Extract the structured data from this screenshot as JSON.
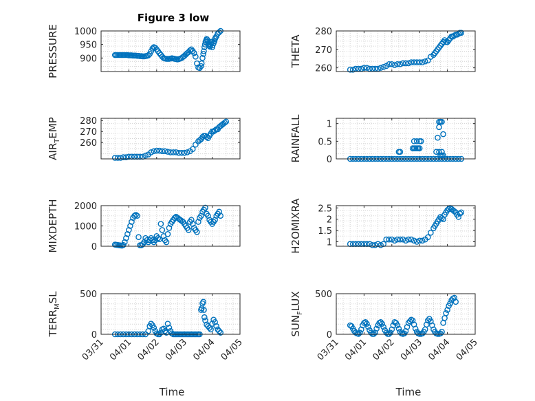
{
  "figure": {
    "title": "Figure 3 low",
    "marker_color": "#0072BD",
    "x_ticks": [
      "03/31",
      "04/01",
      "04/02",
      "04/03",
      "04/04",
      "04/05"
    ],
    "x_label": "Time"
  },
  "chart_data": [
    {
      "type": "scatter",
      "ylabel": "PRESSURE",
      "title": "Figure 3 low",
      "xlim": [
        0,
        5
      ],
      "ylim": [
        850,
        1000
      ],
      "yticks": [
        900,
        950,
        1000
      ],
      "grid": true,
      "x": [
        0.5,
        0.55,
        0.6,
        0.65,
        0.7,
        0.75,
        0.8,
        0.85,
        0.9,
        0.95,
        1,
        1.05,
        1.1,
        1.15,
        1.2,
        1.25,
        1.3,
        1.35,
        1.4,
        1.45,
        1.5,
        1.55,
        1.6,
        1.65,
        1.7,
        1.75,
        1.8,
        1.85,
        1.9,
        1.95,
        2,
        2.05,
        2.1,
        2.15,
        2.2,
        2.25,
        2.3,
        2.35,
        2.4,
        2.45,
        2.5,
        2.55,
        2.6,
        2.65,
        2.7,
        2.75,
        2.8,
        2.85,
        2.9,
        2.95,
        3,
        3.05,
        3.1,
        3.15,
        3.2,
        3.25,
        3.3,
        3.35,
        3.4,
        3.45,
        3.5,
        3.55,
        3.6,
        3.62,
        3.65,
        3.68,
        3.7,
        3.72,
        3.74,
        3.76,
        3.78,
        3.8,
        3.82,
        3.85,
        3.88,
        3.9,
        3.92,
        3.94,
        3.96,
        3.98,
        4,
        4.02,
        4.05,
        4.08,
        4.1,
        4.12,
        4.15,
        4.2,
        4.25,
        4.3
      ],
      "y": [
        911,
        911,
        911,
        911,
        911,
        911,
        911,
        911,
        911,
        911,
        910,
        910,
        910,
        909,
        909,
        909,
        908,
        908,
        907,
        907,
        906,
        906,
        907,
        908,
        910,
        915,
        925,
        935,
        940,
        938,
        932,
        925,
        918,
        912,
        905,
        900,
        898,
        897,
        897,
        897,
        898,
        899,
        898,
        897,
        896,
        895,
        896,
        898,
        900,
        904,
        908,
        913,
        918,
        922,
        928,
        932,
        926,
        918,
        905,
        880,
        865,
        863,
        870,
        880,
        900,
        915,
        925,
        940,
        950,
        960,
        965,
        970,
        968,
        960,
        950,
        945,
        942,
        950,
        955,
        960,
        940,
        948,
        955,
        962,
        970,
        975,
        980,
        990,
        995,
        1000
      ]
    },
    {
      "type": "scatter",
      "ylabel": "THETA",
      "xlim": [
        0,
        5
      ],
      "ylim": [
        258,
        280
      ],
      "yticks": [
        260,
        270,
        280
      ],
      "grid": true,
      "x": [
        0.5,
        0.6,
        0.7,
        0.8,
        0.9,
        1,
        1.1,
        1.2,
        1.3,
        1.4,
        1.5,
        1.6,
        1.7,
        1.8,
        1.9,
        2,
        2.1,
        2.2,
        2.3,
        2.4,
        2.5,
        2.6,
        2.7,
        2.8,
        2.9,
        3,
        3.1,
        3.2,
        3.3,
        3.4,
        3.5,
        3.55,
        3.6,
        3.65,
        3.7,
        3.75,
        3.8,
        3.85,
        3.9,
        3.95,
        4,
        4.05,
        4.1,
        4.15,
        4.2,
        4.25,
        4.3,
        4.35,
        4.4,
        4.45,
        4.5
      ],
      "y": [
        259,
        259,
        259.5,
        259.5,
        259.5,
        260,
        260,
        259.5,
        259.5,
        259.5,
        259.5,
        260,
        260.5,
        261,
        262,
        262,
        261.5,
        262,
        262,
        262.5,
        262.5,
        262.5,
        263,
        263,
        263,
        263,
        263,
        263.5,
        264,
        266,
        267,
        268,
        269,
        270,
        271,
        272,
        273,
        274,
        275,
        274,
        274,
        275,
        276,
        277,
        277,
        277.5,
        278,
        278,
        278.5,
        279,
        279
      ]
    },
    {
      "type": "scatter",
      "ylabel": "AIR_TEMP",
      "xlim": [
        0,
        5
      ],
      "ylim": [
        245,
        282
      ],
      "yticks": [
        260,
        270,
        280
      ],
      "grid": true,
      "x": [
        0.5,
        0.6,
        0.7,
        0.8,
        0.9,
        1,
        1.1,
        1.2,
        1.3,
        1.4,
        1.5,
        1.6,
        1.7,
        1.8,
        1.9,
        2,
        2.1,
        2.2,
        2.3,
        2.4,
        2.5,
        2.6,
        2.7,
        2.8,
        2.9,
        3,
        3.1,
        3.2,
        3.3,
        3.4,
        3.5,
        3.55,
        3.6,
        3.65,
        3.7,
        3.75,
        3.8,
        3.85,
        3.9,
        3.95,
        4,
        4.05,
        4.1,
        4.15,
        4.2,
        4.25,
        4.3,
        4.35,
        4.4,
        4.45,
        4.5
      ],
      "y": [
        246,
        246,
        246,
        246.5,
        246.5,
        247,
        247,
        247,
        247,
        247,
        247,
        248,
        249,
        251,
        252,
        252.5,
        252.5,
        252,
        252,
        251.5,
        251,
        251,
        251,
        250.5,
        250.5,
        250.5,
        251,
        252,
        254,
        258,
        261,
        262,
        263,
        265,
        266,
        266,
        265,
        264,
        266,
        268,
        270,
        270,
        271,
        272,
        272,
        274,
        275,
        276,
        277,
        278,
        279
      ]
    },
    {
      "type": "scatter",
      "ylabel": "RAINFALL",
      "xlim": [
        0,
        5
      ],
      "ylim": [
        0,
        1.15
      ],
      "yticks": [
        0,
        0.5,
        1
      ],
      "grid": true,
      "x": [
        0.5,
        0.6,
        0.7,
        0.8,
        0.9,
        1,
        1.1,
        1.2,
        1.3,
        1.4,
        1.5,
        1.6,
        1.7,
        1.8,
        1.9,
        2,
        2.1,
        2.2,
        2.3,
        2.4,
        2.5,
        2.6,
        2.7,
        2.8,
        2.9,
        3,
        3.1,
        3.2,
        3.3,
        3.4,
        3.5,
        3.6,
        3.7,
        3.8,
        3.9,
        4,
        4.1,
        4.2,
        4.3,
        4.4,
        4.5,
        2.25,
        2.3,
        2.75,
        2.8,
        2.85,
        2.9,
        2.95,
        3,
        2.8,
        2.9,
        3,
        3.05,
        3.6,
        3.7,
        3.75,
        3.8,
        3.85,
        3.7,
        3.75,
        3.8,
        3.85,
        3.8,
        3.65,
        3.7
      ],
      "y": [
        0,
        0,
        0,
        0,
        0,
        0,
        0,
        0,
        0,
        0,
        0,
        0,
        0,
        0,
        0,
        0,
        0,
        0,
        0,
        0,
        0,
        0,
        0,
        0,
        0,
        0,
        0,
        0,
        0,
        0,
        0,
        0,
        0,
        0,
        0,
        0,
        0,
        0,
        0,
        0,
        0,
        0.2,
        0.2,
        0.3,
        0.3,
        0.3,
        0.3,
        0.3,
        0.3,
        0.5,
        0.5,
        0.5,
        0.5,
        0.2,
        0.2,
        0.1,
        0.1,
        0.1,
        1.05,
        1.05,
        1.05,
        0.7,
        0.2,
        0.6,
        0.9
      ]
    },
    {
      "type": "scatter",
      "ylabel": "MIXDEPTH",
      "xlim": [
        0,
        5
      ],
      "ylim": [
        0,
        2000
      ],
      "yticks": [
        0,
        1000,
        2000
      ],
      "grid": true,
      "x": [
        0.5,
        0.55,
        0.6,
        0.65,
        0.7,
        0.75,
        0.8,
        0.85,
        0.9,
        0.95,
        1,
        1.05,
        1.1,
        1.15,
        1.2,
        1.25,
        1.3,
        1.35,
        1.4,
        1.45,
        1.5,
        1.55,
        1.6,
        1.65,
        1.7,
        1.75,
        1.8,
        1.85,
        1.9,
        1.95,
        2,
        2.05,
        2.1,
        2.15,
        2.2,
        2.25,
        2.3,
        2.35,
        2.4,
        2.45,
        2.5,
        2.55,
        2.6,
        2.65,
        2.7,
        2.75,
        2.8,
        2.85,
        2.9,
        2.95,
        3,
        3.05,
        3.1,
        3.15,
        3.2,
        3.25,
        3.3,
        3.35,
        3.4,
        3.45,
        3.5,
        3.55,
        3.6,
        3.65,
        3.7,
        3.75,
        3.8,
        3.85,
        3.9,
        3.95,
        4,
        4.05,
        4.1,
        4.15,
        4.2,
        4.25,
        4.3
      ],
      "y": [
        80,
        70,
        60,
        50,
        40,
        30,
        60,
        200,
        400,
        600,
        800,
        1000,
        1200,
        1400,
        1500,
        1550,
        1500,
        450,
        50,
        50,
        100,
        200,
        400,
        300,
        200,
        300,
        400,
        300,
        200,
        300,
        500,
        400,
        350,
        1100,
        800,
        500,
        300,
        200,
        600,
        900,
        1100,
        1200,
        1300,
        1400,
        1450,
        1400,
        1350,
        1300,
        1250,
        1200,
        1100,
        1000,
        900,
        800,
        1200,
        1300,
        1100,
        900,
        800,
        700,
        1200,
        1400,
        1500,
        1700,
        1800,
        1900,
        1600,
        1500,
        1300,
        1200,
        1100,
        1200,
        1300,
        1500,
        1600,
        1700,
        1500
      ]
    },
    {
      "type": "scatter",
      "ylabel": "H2OMIXRA",
      "xlim": [
        0,
        5
      ],
      "ylim": [
        0.8,
        2.6
      ],
      "yticks": [
        1,
        1.5,
        2,
        2.5
      ],
      "grid": true,
      "x": [
        0.5,
        0.6,
        0.7,
        0.8,
        0.9,
        1,
        1.1,
        1.2,
        1.3,
        1.4,
        1.5,
        1.6,
        1.7,
        1.8,
        1.9,
        2,
        2.1,
        2.2,
        2.3,
        2.4,
        2.5,
        2.6,
        2.7,
        2.8,
        2.9,
        3,
        3.1,
        3.2,
        3.3,
        3.4,
        3.5,
        3.55,
        3.6,
        3.65,
        3.7,
        3.75,
        3.8,
        3.85,
        3.9,
        3.95,
        4,
        4.05,
        4.1,
        4.15,
        4.2,
        4.25,
        4.3,
        4.35,
        4.4,
        4.45,
        4.5
      ],
      "y": [
        0.9,
        0.9,
        0.9,
        0.9,
        0.9,
        0.9,
        0.9,
        0.9,
        0.85,
        0.85,
        0.9,
        0.85,
        0.9,
        1.1,
        1.1,
        1.1,
        1.05,
        1.1,
        1.1,
        1.1,
        1.05,
        1.1,
        1.1,
        1.05,
        1.0,
        1.05,
        1.05,
        1.1,
        1.2,
        1.4,
        1.6,
        1.7,
        1.8,
        1.9,
        2.0,
        2.1,
        2.05,
        2.0,
        2.2,
        2.3,
        2.4,
        2.45,
        2.5,
        2.45,
        2.4,
        2.35,
        2.3,
        2.2,
        2.1,
        2.25,
        2.3
      ]
    },
    {
      "type": "scatter",
      "ylabel": "TERR_MSL",
      "xlim": [
        0,
        5
      ],
      "ylim": [
        0,
        500
      ],
      "yticks": [
        0,
        500
      ],
      "grid": true,
      "x": [
        0.5,
        0.6,
        0.7,
        0.8,
        0.9,
        1,
        1.1,
        1.2,
        1.3,
        1.4,
        1.5,
        1.6,
        1.7,
        1.75,
        1.8,
        1.85,
        1.9,
        1.95,
        2,
        2.05,
        2.1,
        2.15,
        2.2,
        2.25,
        2.3,
        2.35,
        2.4,
        2.45,
        2.5,
        2.55,
        2.6,
        2.65,
        2.7,
        2.75,
        2.8,
        2.85,
        2.9,
        2.95,
        3,
        3.05,
        3.1,
        3.15,
        3.2,
        3.25,
        3.3,
        3.35,
        3.4,
        3.45,
        3.5,
        3.55,
        3.6,
        3.62,
        3.65,
        3.68,
        3.7,
        3.72,
        3.75,
        3.8,
        3.85,
        3.9,
        3.95,
        4,
        4.05,
        4.1,
        4.15,
        4.2,
        4.25,
        4.3
      ],
      "y": [
        0,
        0,
        0,
        0,
        0,
        0,
        0,
        0,
        0,
        0,
        0,
        0,
        40,
        100,
        130,
        110,
        80,
        40,
        10,
        0,
        0,
        20,
        60,
        70,
        40,
        20,
        130,
        80,
        40,
        10,
        0,
        0,
        0,
        0,
        0,
        0,
        0,
        0,
        0,
        0,
        0,
        0,
        0,
        0,
        0,
        0,
        0,
        0,
        0,
        0,
        300,
        320,
        380,
        400,
        300,
        210,
        170,
        120,
        100,
        80,
        60,
        130,
        180,
        150,
        100,
        60,
        40,
        20
      ]
    },
    {
      "type": "scatter",
      "ylabel": "SUN_FLUX",
      "xlim": [
        0,
        5
      ],
      "ylim": [
        0,
        500
      ],
      "yticks": [
        0,
        500
      ],
      "grid": true,
      "x": [
        0.5,
        0.55,
        0.6,
        0.65,
        0.7,
        0.75,
        0.8,
        0.85,
        0.9,
        0.95,
        1,
        1.05,
        1.1,
        1.15,
        1.2,
        1.25,
        1.3,
        1.35,
        1.4,
        1.45,
        1.5,
        1.55,
        1.6,
        1.65,
        1.7,
        1.75,
        1.8,
        1.85,
        1.9,
        1.95,
        2,
        2.05,
        2.1,
        2.15,
        2.2,
        2.25,
        2.3,
        2.35,
        2.4,
        2.45,
        2.5,
        2.55,
        2.6,
        2.65,
        2.7,
        2.75,
        2.8,
        2.85,
        2.9,
        2.95,
        3,
        3.05,
        3.1,
        3.15,
        3.2,
        3.25,
        3.3,
        3.35,
        3.4,
        3.45,
        3.5,
        3.55,
        3.6,
        3.65,
        3.7,
        3.75,
        3.8,
        3.85,
        3.9,
        3.95,
        4,
        4.05,
        4.1,
        4.15,
        4.2,
        4.25,
        4.3
      ],
      "y": [
        110,
        100,
        70,
        40,
        20,
        10,
        5,
        20,
        60,
        110,
        140,
        150,
        130,
        90,
        50,
        20,
        5,
        5,
        20,
        70,
        110,
        140,
        150,
        130,
        90,
        50,
        20,
        5,
        5,
        20,
        60,
        110,
        150,
        140,
        110,
        70,
        30,
        10,
        5,
        10,
        40,
        90,
        140,
        160,
        180,
        170,
        120,
        70,
        30,
        10,
        5,
        5,
        10,
        30,
        60,
        120,
        170,
        190,
        160,
        110,
        60,
        30,
        10,
        5,
        5,
        10,
        30,
        140,
        200,
        260,
        300,
        350,
        380,
        420,
        440,
        450,
        400
      ]
    }
  ]
}
